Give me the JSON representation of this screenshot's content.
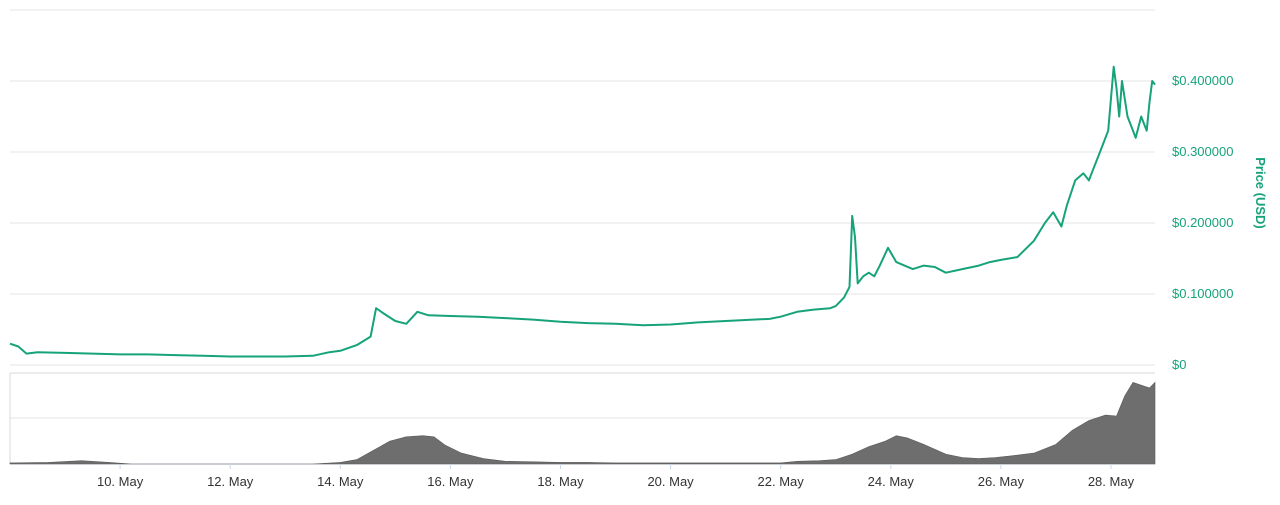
{
  "chart_data": {
    "type": "line",
    "title": "",
    "xlabel": "",
    "ylabel": "Price (USD)",
    "ylim": [
      0,
      0.5
    ],
    "grid": true,
    "colors": {
      "price": "#16a37a",
      "volume": "#6e6e6e",
      "grid": "#e6e6e6",
      "axis_text": "#16a37a",
      "date_text": "#333333"
    },
    "y_ticks": [
      {
        "value": 0,
        "label": "$0"
      },
      {
        "value": 0.1,
        "label": "$0.100000"
      },
      {
        "value": 0.2,
        "label": "$0.200000"
      },
      {
        "value": 0.3,
        "label": "$0.300000"
      },
      {
        "value": 0.4,
        "label": "$0.400000"
      }
    ],
    "x_ticks": [
      {
        "day": 10,
        "label": "10. May"
      },
      {
        "day": 12,
        "label": "12. May"
      },
      {
        "day": 14,
        "label": "14. May"
      },
      {
        "day": 16,
        "label": "16. May"
      },
      {
        "day": 18,
        "label": "18. May"
      },
      {
        "day": 20,
        "label": "20. May"
      },
      {
        "day": 22,
        "label": "22. May"
      },
      {
        "day": 24,
        "label": "24. May"
      },
      {
        "day": 26,
        "label": "26. May"
      },
      {
        "day": 28,
        "label": "28. May"
      }
    ],
    "x_range_days": [
      8.0,
      28.8
    ],
    "series": [
      {
        "x_days": [
          8.0,
          8.15,
          8.3,
          8.5,
          9.0,
          9.5,
          10.0,
          10.5,
          11.0,
          11.5,
          12.0,
          12.5,
          13.0,
          13.5,
          13.8,
          14.0,
          14.3,
          14.55,
          14.65,
          14.8,
          15.0,
          15.2,
          15.4,
          15.6,
          16.0,
          16.5,
          17.0,
          17.5,
          18.0,
          18.5,
          19.0,
          19.5,
          20.0,
          20.5,
          21.0,
          21.5,
          21.8,
          22.0,
          22.3,
          22.6,
          22.9,
          23.0,
          23.15,
          23.25,
          23.3,
          23.35,
          23.4,
          23.5,
          23.6,
          23.7,
          23.8,
          23.95,
          24.1,
          24.25,
          24.4,
          24.6,
          24.8,
          25.0,
          25.3,
          25.6,
          25.8,
          26.0,
          26.3,
          26.6,
          26.8,
          26.95,
          27.1,
          27.2,
          27.35,
          27.5,
          27.6,
          27.7,
          27.8,
          27.95,
          28.05,
          28.1,
          28.15,
          28.2,
          28.3,
          28.4,
          28.45,
          28.55,
          28.65,
          28.7,
          28.75,
          28.8
        ],
        "values": [
          0.03,
          0.026,
          0.016,
          0.018,
          0.017,
          0.016,
          0.015,
          0.015,
          0.014,
          0.013,
          0.012,
          0.012,
          0.012,
          0.013,
          0.018,
          0.02,
          0.028,
          0.04,
          0.08,
          0.072,
          0.062,
          0.058,
          0.075,
          0.07,
          0.069,
          0.068,
          0.066,
          0.064,
          0.061,
          0.059,
          0.058,
          0.056,
          0.057,
          0.06,
          0.062,
          0.064,
          0.065,
          0.068,
          0.075,
          0.078,
          0.08,
          0.083,
          0.095,
          0.11,
          0.21,
          0.18,
          0.115,
          0.125,
          0.13,
          0.125,
          0.14,
          0.165,
          0.145,
          0.14,
          0.135,
          0.14,
          0.138,
          0.13,
          0.135,
          0.14,
          0.145,
          0.148,
          0.152,
          0.175,
          0.2,
          0.215,
          0.195,
          0.225,
          0.26,
          0.27,
          0.26,
          0.28,
          0.3,
          0.33,
          0.42,
          0.39,
          0.35,
          0.4,
          0.35,
          0.33,
          0.32,
          0.35,
          0.33,
          0.37,
          0.4,
          0.395
        ]
      }
    ],
    "volume": {
      "x_days": [
        8.0,
        8.7,
        9.3,
        9.8,
        10.2,
        11.0,
        12.0,
        13.0,
        13.5,
        14.0,
        14.3,
        14.6,
        14.9,
        15.2,
        15.5,
        15.7,
        15.9,
        16.2,
        16.6,
        17.0,
        17.5,
        18.0,
        18.5,
        19.0,
        19.5,
        20.0,
        20.5,
        21.0,
        21.5,
        22.0,
        22.3,
        22.7,
        23.0,
        23.3,
        23.6,
        23.9,
        24.1,
        24.3,
        24.6,
        25.0,
        25.3,
        25.6,
        25.9,
        26.2,
        26.6,
        27.0,
        27.3,
        27.6,
        27.9,
        28.1,
        28.25,
        28.4,
        28.55,
        28.7,
        28.8
      ],
      "values": [
        0.02,
        0.03,
        0.06,
        0.03,
        0.0,
        0.0,
        0.0,
        0.0,
        0.0,
        0.03,
        0.08,
        0.25,
        0.42,
        0.5,
        0.52,
        0.5,
        0.35,
        0.2,
        0.1,
        0.05,
        0.04,
        0.03,
        0.03,
        0.02,
        0.02,
        0.02,
        0.02,
        0.02,
        0.02,
        0.02,
        0.05,
        0.06,
        0.08,
        0.18,
        0.32,
        0.42,
        0.52,
        0.48,
        0.36,
        0.18,
        0.12,
        0.1,
        0.12,
        0.15,
        0.2,
        0.36,
        0.62,
        0.8,
        0.9,
        0.88,
        1.25,
        1.5,
        1.45,
        1.4,
        1.5
      ]
    }
  }
}
